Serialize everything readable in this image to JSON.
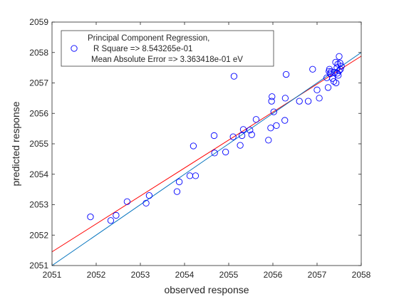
{
  "chart_data": {
    "type": "scatter",
    "xlabel": "observed response",
    "ylabel": "predicted response",
    "xlim": [
      2051,
      2058
    ],
    "ylim": [
      2051,
      2059
    ],
    "xticks": [
      "2051",
      "2052",
      "2053",
      "2054",
      "2055",
      "2056",
      "2057",
      "2058"
    ],
    "yticks": [
      "2051",
      "2052",
      "2053",
      "2054",
      "2055",
      "2056",
      "2057",
      "2058",
      "2059"
    ],
    "grid": false,
    "legend": {
      "placement": "top-left",
      "lines": [
        "Principal Component Regression,",
        "R Square => 8.543265e-01",
        "Mean Absolute Error => 3.363418e-01 eV"
      ]
    },
    "colors": {
      "points": "#0000ff",
      "fit_line": "#ff0000",
      "identity_line": "#0072bd",
      "axes": "#262626"
    },
    "series": [
      {
        "marker": "circle",
        "points": [
          [
            2051.87,
            2052.6
          ],
          [
            2052.33,
            2052.48
          ],
          [
            2052.45,
            2052.65
          ],
          [
            2052.7,
            2053.1
          ],
          [
            2053.13,
            2053.05
          ],
          [
            2053.2,
            2053.3
          ],
          [
            2053.83,
            2053.43
          ],
          [
            2053.88,
            2053.75
          ],
          [
            2054.12,
            2053.95
          ],
          [
            2054.25,
            2053.95
          ],
          [
            2054.2,
            2054.93
          ],
          [
            2054.68,
            2054.7
          ],
          [
            2054.67,
            2055.27
          ],
          [
            2054.93,
            2054.73
          ],
          [
            2055.1,
            2055.23
          ],
          [
            2055.26,
            2054.95
          ],
          [
            2055.3,
            2055.27
          ],
          [
            2055.33,
            2055.47
          ],
          [
            2055.48,
            2055.45
          ],
          [
            2055.52,
            2055.3
          ],
          [
            2055.62,
            2055.8
          ],
          [
            2055.9,
            2055.12
          ],
          [
            2055.95,
            2055.52
          ],
          [
            2055.97,
            2056.4
          ],
          [
            2055.98,
            2056.55
          ],
          [
            2056.02,
            2056.05
          ],
          [
            2056.08,
            2055.6
          ],
          [
            2056.27,
            2055.77
          ],
          [
            2056.28,
            2056.5
          ],
          [
            2056.3,
            2057.28
          ],
          [
            2055.12,
            2057.22
          ],
          [
            2056.6,
            2056.4
          ],
          [
            2056.8,
            2056.4
          ],
          [
            2056.9,
            2057.45
          ],
          [
            2057.0,
            2056.77
          ],
          [
            2057.05,
            2056.5
          ],
          [
            2057.22,
            2057.17
          ],
          [
            2057.25,
            2056.85
          ],
          [
            2057.28,
            2057.45
          ],
          [
            2057.3,
            2057.3
          ],
          [
            2057.32,
            2057.37
          ],
          [
            2057.35,
            2057.15
          ],
          [
            2057.38,
            2057.05
          ],
          [
            2057.4,
            2057.35
          ],
          [
            2057.42,
            2057.68
          ],
          [
            2057.43,
            2057.0
          ],
          [
            2057.45,
            2057.5
          ],
          [
            2057.47,
            2057.62
          ],
          [
            2057.48,
            2057.25
          ],
          [
            2057.5,
            2057.4
          ],
          [
            2057.5,
            2057.87
          ],
          [
            2057.52,
            2057.65
          ],
          [
            2057.53,
            2057.45
          ],
          [
            2057.55,
            2057.55
          ],
          [
            2057.27,
            2057.38
          ],
          [
            2057.46,
            2057.32
          ]
        ]
      }
    ],
    "lines": [
      {
        "kind": "fit",
        "x": [
          2051,
          2058
        ],
        "y": [
          2051.45,
          2057.88
        ]
      },
      {
        "kind": "identity",
        "x": [
          2051,
          2058
        ],
        "y": [
          2051,
          2058
        ]
      }
    ]
  }
}
